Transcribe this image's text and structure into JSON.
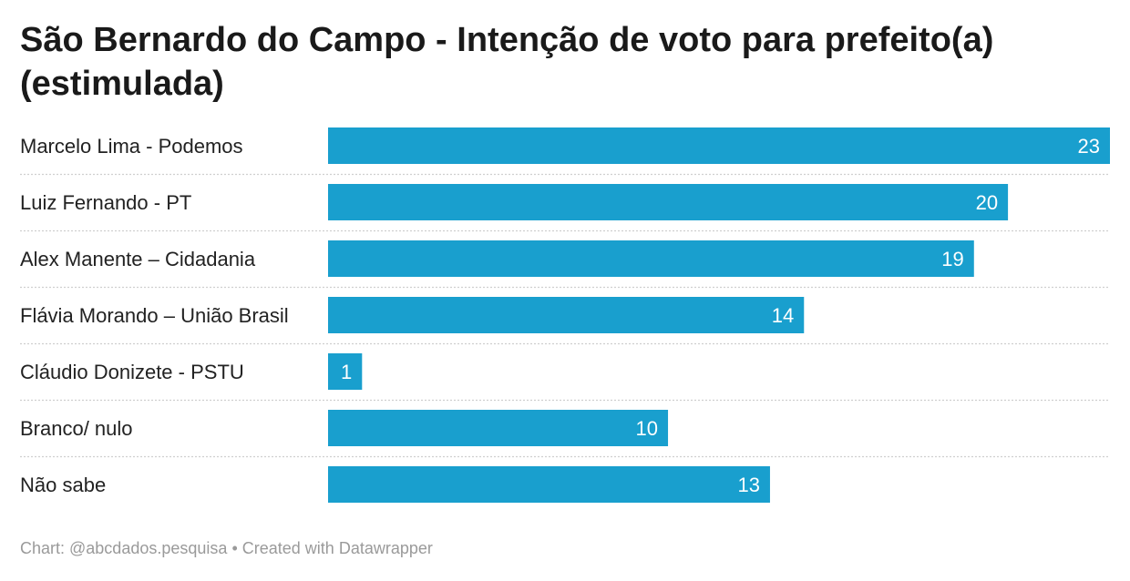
{
  "chart_data": {
    "type": "bar",
    "orientation": "horizontal",
    "title": "São Bernardo do Campo - Intenção de voto para prefeito(a) (estimulada)",
    "categories": [
      "Marcelo Lima - Podemos",
      "Luiz Fernando - PT",
      "Alex Manente – Cidadania",
      "Flávia Morando – União Brasil",
      "Cláudio Donizete - PSTU",
      "Branco/ nulo",
      "Não sabe"
    ],
    "values": [
      23,
      20,
      19,
      14,
      1,
      10,
      13
    ],
    "xlim": [
      0,
      23
    ],
    "grid": false,
    "colors": {
      "bar": "#199fce"
    }
  },
  "footer": {
    "chart_credit": "Chart: @abcdados.pesquisa",
    "separator": "•",
    "created_with": "Created with Datawrapper"
  }
}
